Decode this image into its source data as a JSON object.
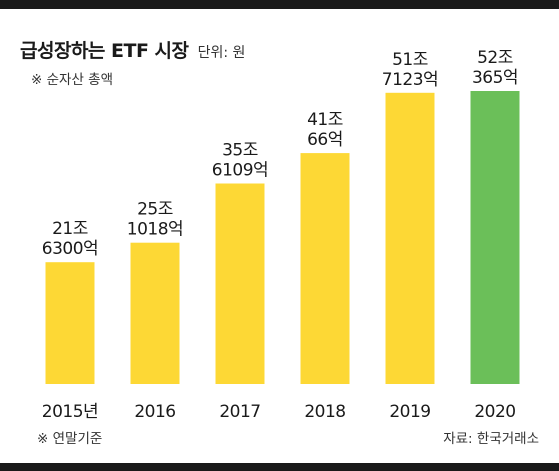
{
  "header": {
    "title": "급성장하는 ETF 시장",
    "unit": "단위: 원",
    "subnote": "※ 순자산 총액"
  },
  "footer": {
    "footnote": "※ 연말기준",
    "source": "자료: 한국거래소"
  },
  "colors": {
    "bar": "#FDD835",
    "highlight": "#6BBF59",
    "rule": "#1a1a1a"
  },
  "chart_data": {
    "type": "bar",
    "categories": [
      "2015년",
      "2016",
      "2017",
      "2018",
      "2019",
      "2020"
    ],
    "values": [
      21.63,
      25.1018,
      35.6109,
      41.0066,
      51.7123,
      52.0365
    ],
    "value_labels": [
      [
        "21조",
        "6300억"
      ],
      [
        "25조",
        "1018억"
      ],
      [
        "35조",
        "6109억"
      ],
      [
        "41조",
        "66억"
      ],
      [
        "51조",
        "7123억"
      ],
      [
        "52조",
        "365억"
      ]
    ],
    "highlight_index": 5,
    "ylim": [
      0,
      53
    ],
    "grid": false,
    "legend": "none"
  }
}
